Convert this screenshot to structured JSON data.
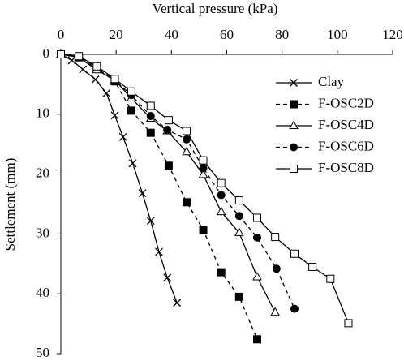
{
  "chart_data": {
    "type": "line",
    "x_label": "Vertical pressure (kPa)",
    "y_label": "Settlement (mm)",
    "x_axis_position": "top",
    "y_reversed": true,
    "xlim": [
      0,
      120
    ],
    "xticks": [
      0,
      20,
      40,
      60,
      80,
      100,
      120
    ],
    "ylim": [
      0,
      50
    ],
    "yticks": [
      0,
      10,
      20,
      30,
      40,
      50
    ],
    "grid": false,
    "legend_position": "upper right",
    "series": [
      {
        "name": "Clay",
        "color": "#000000",
        "marker": "x",
        "dashed": false,
        "x": [
          0,
          4,
          8,
          12.5,
          16.5,
          19.5,
          22.5,
          26,
          29.5,
          32.5,
          35.5,
          38.5,
          42
        ],
        "values": [
          0,
          1,
          2.5,
          4.2,
          6.5,
          10.2,
          13.8,
          18.2,
          23.2,
          27.8,
          33,
          37.3,
          41.5
        ]
      },
      {
        "name": "F-OSC2D",
        "color": "#000000",
        "marker": "filled-square",
        "dashed": true,
        "x": [
          0,
          6.5,
          13,
          19.5,
          25.5,
          32.5,
          39,
          45.5,
          51.5,
          58,
          64.5,
          71
        ],
        "values": [
          0,
          0.5,
          2.3,
          4.5,
          9.4,
          13.1,
          18.6,
          24.7,
          29.3,
          36.4,
          40.5,
          47.6
        ]
      },
      {
        "name": "F-OSC4D",
        "color": "#000000",
        "marker": "open-triangle",
        "dashed": false,
        "x": [
          0,
          6.5,
          13,
          19.5,
          25.5,
          32.5,
          38.5,
          45.5,
          51.5,
          58,
          64.5,
          71,
          77.5
        ],
        "values": [
          0,
          0.5,
          2.6,
          4.3,
          7.3,
          10.7,
          12.8,
          16.3,
          20.1,
          26.3,
          29.8,
          37.2,
          43.1
        ]
      },
      {
        "name": "F-OSC6D",
        "color": "#000000",
        "marker": "filled-circle",
        "dashed": true,
        "x": [
          0,
          6.5,
          13,
          19.5,
          25.5,
          32.5,
          38.5,
          45.5,
          51.5,
          58,
          64.5,
          71,
          78,
          84.5
        ],
        "values": [
          0,
          0.4,
          2.0,
          4.3,
          6.8,
          10.3,
          12.6,
          14.2,
          19.0,
          23.5,
          27.0,
          30.6,
          35.8,
          42.5
        ]
      },
      {
        "name": "F-OSC8D",
        "color": "#000000",
        "marker": "open-square",
        "dashed": false,
        "x": [
          0,
          6.5,
          13,
          19.5,
          25.5,
          32.5,
          39,
          45.5,
          51.5,
          58,
          64.5,
          71,
          77.5,
          84.5,
          91,
          97.5,
          104
        ],
        "values": [
          0,
          0.3,
          2.0,
          4.1,
          6.2,
          8.6,
          11.0,
          12.8,
          17.7,
          21.5,
          24.4,
          27.3,
          30.5,
          33.3,
          35.5,
          37.5,
          44.9
        ]
      }
    ]
  }
}
